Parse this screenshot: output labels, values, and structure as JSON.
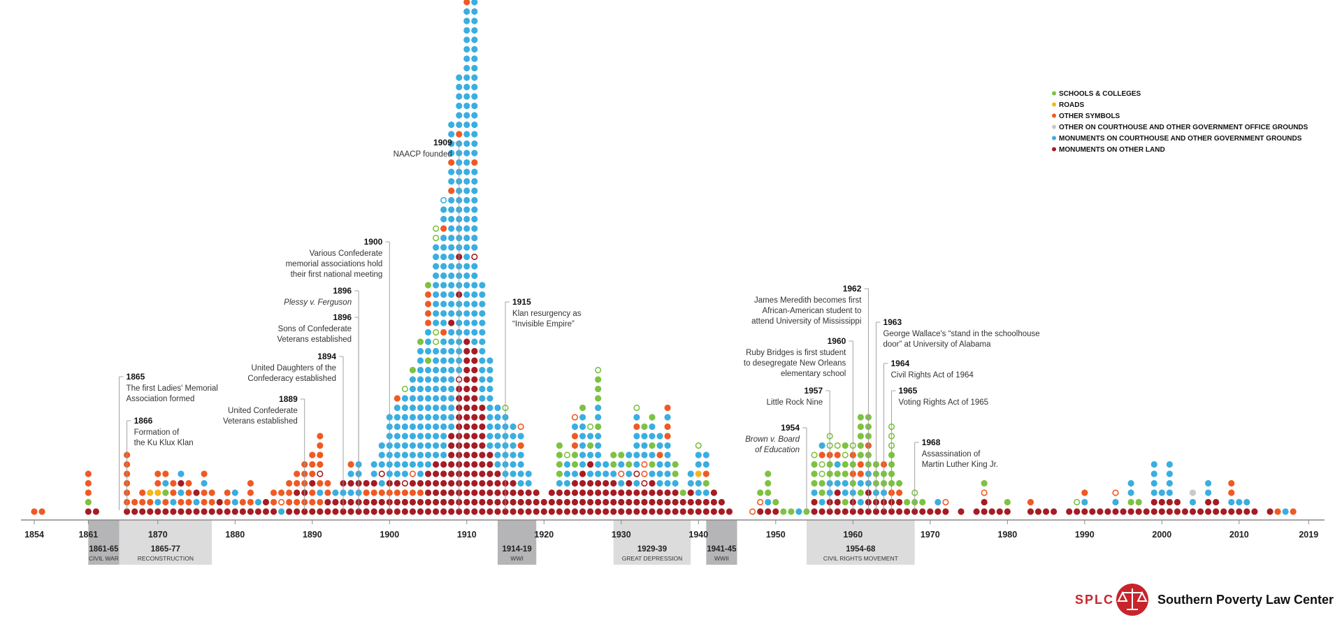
{
  "chart_data": {
    "type": "scatter",
    "subtype": "dot-stack timeline",
    "x_range": [
      1854,
      2019
    ],
    "colors": {
      "schools": "#7dc242",
      "roads": "#f3b71b",
      "other_symbols": "#ef5a24",
      "other_courthouse": "#c9c9c9",
      "courthouse": "#3aaee0",
      "other_land": "#a51c24"
    },
    "legend": [
      {
        "key": "schools",
        "label": "SCHOOLS & COLLEGES"
      },
      {
        "key": "roads",
        "label": "ROADS"
      },
      {
        "key": "other_symbols",
        "label": "OTHER SYMBOLS"
      },
      {
        "key": "other_courthouse",
        "label": "OTHER ON COURTHOUSE AND OTHER GOVERNMENT OFFICE GROUNDS"
      },
      {
        "key": "courthouse",
        "label": "MONUMENTS ON COURTHOUSE AND OTHER GOVERNMENT GROUNDS"
      },
      {
        "key": "other_land",
        "label": "MONUMENTS ON OTHER LAND"
      }
    ],
    "legend_position": "top-right",
    "ticks": [
      {
        "year": 1854,
        "label": "1854"
      },
      {
        "year": 1861,
        "label": "1861"
      },
      {
        "year": 1870,
        "label": "1870"
      },
      {
        "year": 1880,
        "label": "1880"
      },
      {
        "year": 1890,
        "label": "1890"
      },
      {
        "year": 1900,
        "label": "1900"
      },
      {
        "year": 1910,
        "label": "1910"
      },
      {
        "year": 1920,
        "label": "1920"
      },
      {
        "year": 1930,
        "label": "1930"
      },
      {
        "year": 1940,
        "label": "1940"
      },
      {
        "year": 1950,
        "label": "1950"
      },
      {
        "year": 1960,
        "label": "1960"
      },
      {
        "year": 1970,
        "label": "1970"
      },
      {
        "year": 1980,
        "label": "1980"
      },
      {
        "year": 1990,
        "label": "1990"
      },
      {
        "year": 2000,
        "label": "2000"
      },
      {
        "year": 2010,
        "label": "2010"
      },
      {
        "year": 2019,
        "label": "2019"
      }
    ],
    "periods": [
      {
        "start": 1861,
        "end": 1865,
        "range": "1861-65",
        "name": "CIVIL WAR",
        "shade": "dark"
      },
      {
        "start": 1865,
        "end": 1877,
        "range": "1865-77",
        "name": "RECONSTRUCTION",
        "shade": "light"
      },
      {
        "start": 1914,
        "end": 1919,
        "range": "1914-19",
        "name": "WWI",
        "shade": "dark"
      },
      {
        "start": 1929,
        "end": 1939,
        "range": "1929-39",
        "name": "GREAT DEPRESSION",
        "shade": "light"
      },
      {
        "start": 1941,
        "end": 1945,
        "range": "1941-45",
        "name": "WWII",
        "shade": "dark"
      },
      {
        "start": 1954,
        "end": 1968,
        "range": "1954-68",
        "name": "CIVIL RIGHTS MOVEMENT",
        "shade": "light"
      }
    ],
    "annotations": [
      {
        "year": 1865,
        "title": "1865",
        "lines": [
          "The first Ladies' Memorial",
          "Association formed"
        ],
        "side": "right",
        "level": 548
      },
      {
        "year": 1866,
        "title": "1866",
        "lines": [
          "Formation of",
          "the Ku Klux Klan"
        ],
        "side": "right",
        "level": 611
      },
      {
        "year": 1889,
        "title": "1889",
        "lines": [
          "United Confederate",
          "Veterans established"
        ],
        "side": "left",
        "level": 580
      },
      {
        "year": 1894,
        "title": "1894",
        "lines": [
          "United Daughters of the",
          "Confederacy established"
        ],
        "side": "left",
        "level": 519
      },
      {
        "year": 1896,
        "title": "1896",
        "lines": [
          "Sons of Confederate",
          "Veterans established"
        ],
        "side": "left",
        "level": 463
      },
      {
        "year": 1896,
        "title": "1896",
        "lines": [
          "Plessy v. Ferguson"
        ],
        "side": "left",
        "italic": true,
        "level": 425
      },
      {
        "year": 1900,
        "title": "1900",
        "lines": [
          "Various Confederate",
          "memorial associations hold",
          "their first national meeting"
        ],
        "side": "left",
        "level": 355
      },
      {
        "year": 1909,
        "title": "1909",
        "lines": [
          "NAACP founded"
        ],
        "side": "left",
        "level": 213
      },
      {
        "year": 1915,
        "title": "1915",
        "lines": [
          "Klan resurgency as",
          "“Invisible Empire”"
        ],
        "side": "right",
        "level": 441
      },
      {
        "year": 1954,
        "title": "1954",
        "lines": [
          "Brown v. Board",
          "of Education"
        ],
        "side": "left",
        "italic": true,
        "level": 621
      },
      {
        "year": 1957,
        "title": "1957",
        "lines": [
          "Little Rock Nine"
        ],
        "side": "left",
        "level": 568
      },
      {
        "year": 1960,
        "title": "1960",
        "lines": [
          "Ruby Bridges is first student",
          "to desegregate New Orleans",
          "elementary school"
        ],
        "side": "left",
        "level": 497
      },
      {
        "year": 1962,
        "title": "1962",
        "lines": [
          "James Meredith becomes first",
          "African-American student to",
          "attend University of Mississippi"
        ],
        "side": "left",
        "level": 422
      },
      {
        "year": 1963,
        "title": "1963",
        "lines": [
          "George Wallace's “stand in the schoolhouse",
          "door” at University of Alabama"
        ],
        "side": "right",
        "level": 470
      },
      {
        "year": 1964,
        "title": "1964",
        "lines": [
          "Civil Rights Act of 1964"
        ],
        "side": "right",
        "level": 529
      },
      {
        "year": 1965,
        "title": "1965",
        "lines": [
          "Voting Rights Act of 1965"
        ],
        "side": "right",
        "level": 568
      },
      {
        "year": 1968,
        "title": "1968",
        "lines": [
          "Assassination of",
          "Martin Luther King Jr."
        ],
        "side": "right",
        "level": 642
      }
    ],
    "columns": [
      {
        "year": 1854,
        "stack": "o"
      },
      {
        "year": 1855,
        "stack": "o"
      },
      {
        "year": 1861,
        "stack": "dgooo"
      },
      {
        "year": 1862,
        "stack": "d"
      },
      {
        "year": 1866,
        "stack": "doooooo"
      },
      {
        "year": 1867,
        "stack": "do"
      },
      {
        "year": 1868,
        "stack": "doo"
      },
      {
        "year": 1869,
        "stack": "doy"
      },
      {
        "year": 1870,
        "stack": "dcyoo"
      },
      {
        "year": 1871,
        "stack": "dogco"
      },
      {
        "year": 1872,
        "stack": "dcoo"
      },
      {
        "year": 1873,
        "stack": "docdc"
      },
      {
        "year": 1874,
        "stack": "dooo"
      },
      {
        "year": 1875,
        "stack": "dcd"
      },
      {
        "year": 1876,
        "stack": "dooco"
      },
      {
        "year": 1877,
        "stack": "doo"
      },
      {
        "year": 1878,
        "stack": "dd"
      },
      {
        "year": 1879,
        "stack": "doo"
      },
      {
        "year": 1880,
        "stack": "dcc"
      },
      {
        "year": 1881,
        "stack": "do"
      },
      {
        "year": 1882,
        "stack": "dooo"
      },
      {
        "year": 1883,
        "stack": "dc"
      },
      {
        "year": 1884,
        "stack": "dd"
      },
      {
        "year": 1885,
        "stack": "doo"
      },
      {
        "year": 1886,
        "stack": "cOo"
      },
      {
        "year": 1887,
        "stack": "dooo"
      },
      {
        "year": 1888,
        "stack": "dodoo"
      },
      {
        "year": 1889,
        "stack": "dodooo"
      },
      {
        "year": 1890,
        "stack": "doodooo"
      },
      {
        "year": 1891,
        "stack": "docoDoooo"
      },
      {
        "year": 1892,
        "stack": "ddoo"
      },
      {
        "year": 1893,
        "stack": "ddc"
      },
      {
        "year": 1894,
        "stack": "ddcd"
      },
      {
        "year": 1895,
        "stack": "ddcdco"
      },
      {
        "year": 1896,
        "stack": "ddcdcc"
      },
      {
        "year": 1897,
        "stack": "ddod"
      },
      {
        "year": 1898,
        "stack": "ddodcc"
      },
      {
        "year": 1899,
        "stack": "ddocDccc"
      },
      {
        "year": 1900,
        "stack": "ddodccccccc"
      },
      {
        "year": 1901,
        "stack": "ddodcccccccco"
      },
      {
        "year": 1902,
        "stack": "ddoDcccccccccG"
      },
      {
        "year": 1903,
        "stack": "ddodOccccccccccg"
      },
      {
        "year": 1904,
        "stack": "ddodccccccccccccccg"
      },
      {
        "year": 1905,
        "stack": "dddddcccccccccccgcccoooog"
      },
      {
        "year": 1906,
        "stack": "ddddddccccccccccccGGcccccccccGG"
      },
      {
        "year": 1907,
        "stack": "ddddddcccccccccccccoccccccccccoccC"
      },
      {
        "year": 1908,
        "stack": "dddddddddcccccccccccdcccccccccccccoccocccc"
      },
      {
        "year": 1909,
        "stack": "ddddddddddddddDccccccccdcccdccccccccccccocccccc"
      },
      {
        "year": 1910,
        "stack": "dddddddddddddddddddcccccccccccccccccccccccccccccccccccoocccooggCcgggG"
      },
      {
        "year": 1911,
        "stack": "ddddddddddddddddddcccccccccDcccccccccoccccccccccccccccccoooccc"
      },
      {
        "year": 1912,
        "stack": "ddddddddddddccccccccccccc"
      },
      {
        "year": 1913,
        "stack": "dddddddcccccccccc"
      },
      {
        "year": 1914,
        "stack": "dddddccccccc"
      },
      {
        "year": 1915,
        "stack": "ddddcccccccG"
      },
      {
        "year": 1916,
        "stack": "ddddcccccc"
      },
      {
        "year": 1917,
        "stack": "dddccccocO"
      },
      {
        "year": 1918,
        "stack": "dddcc"
      },
      {
        "year": 1919,
        "stack": "ddd"
      },
      {
        "year": 1920,
        "stack": "dd"
      },
      {
        "year": 1921,
        "stack": "ddd"
      },
      {
        "year": 1922,
        "stack": "dddcgggg"
      },
      {
        "year": 1923,
        "stack": "dddcccG"
      },
      {
        "year": 1924,
        "stack": "ddddcggoocO"
      },
      {
        "year": 1925,
        "stack": "dddddccccccg"
      },
      {
        "year": 1926,
        "stack": "ddddcdcgcG"
      },
      {
        "year": 1927,
        "stack": "ddddcccccgccgggG"
      },
      {
        "year": 1928,
        "stack": "ddddcc"
      },
      {
        "year": 1929,
        "stack": "ddddcgg"
      },
      {
        "year": 1930,
        "stack": "dddcOcg"
      },
      {
        "year": 1931,
        "stack": "ddddcgc"
      },
      {
        "year": 1932,
        "stack": "dddcDccccocG"
      },
      {
        "year": 1933,
        "stack": "dddDOOcccg"
      },
      {
        "year": 1934,
        "stack": "ddddcgcgccg"
      },
      {
        "year": 1935,
        "stack": "dddcccocc"
      },
      {
        "year": 1936,
        "stack": "dddcccccooco"
      },
      {
        "year": 1937,
        "stack": "dddcgg"
      },
      {
        "year": 1938,
        "stack": "ddg"
      },
      {
        "year": 1939,
        "stack": "dddcc"
      },
      {
        "year": 1940,
        "stack": "ddccyccG"
      },
      {
        "year": 1941,
        "stack": "ddcgocc"
      },
      {
        "year": 1942,
        "stack": "ddd"
      },
      {
        "year": 1943,
        "stack": "dd"
      },
      {
        "year": 1944,
        "stack": "d"
      },
      {
        "year": 1947,
        "stack": "O"
      },
      {
        "year": 1948,
        "stack": "dOg"
      },
      {
        "year": 1949,
        "stack": "dcggg"
      },
      {
        "year": 1950,
        "stack": "dg"
      },
      {
        "year": 1951,
        "stack": "g"
      },
      {
        "year": 1952,
        "stack": "g"
      },
      {
        "year": 1953,
        "stack": "c"
      },
      {
        "year": 1954,
        "stack": "g"
      },
      {
        "year": 1955,
        "stack": "ddcgggG"
      },
      {
        "year": 1956,
        "stack": "dcggGGoc"
      },
      {
        "year": 1957,
        "stack": "ddccggoGG"
      },
      {
        "year": 1958,
        "stack": "dddcgcoG"
      },
      {
        "year": 1959,
        "stack": "dgccggGg"
      },
      {
        "year": 1960,
        "stack": "ddcgogoG"
      },
      {
        "year": 1961,
        "stack": "dcgcooggggg"
      },
      {
        "year": 1962,
        "stack": "dddccggoggg"
      },
      {
        "year": 1963,
        "stack": "ddcggg"
      },
      {
        "year": 1964,
        "stack": "ddcggo"
      },
      {
        "year": 1965,
        "stack": "ddoggggGGG"
      },
      {
        "year": 1966,
        "stack": "ddog"
      },
      {
        "year": 1967,
        "stack": "dg"
      },
      {
        "year": 1968,
        "stack": "dgG"
      },
      {
        "year": 1969,
        "stack": "dg"
      },
      {
        "year": 1970,
        "stack": "d"
      },
      {
        "year": 1971,
        "stack": "dc"
      },
      {
        "year": 1972,
        "stack": "dO"
      },
      {
        "year": 1974,
        "stack": "d"
      },
      {
        "year": 1976,
        "stack": "d"
      },
      {
        "year": 1977,
        "stack": "ddOg"
      },
      {
        "year": 1978,
        "stack": "d"
      },
      {
        "year": 1979,
        "stack": "d"
      },
      {
        "year": 1980,
        "stack": "dg"
      },
      {
        "year": 1983,
        "stack": "do"
      },
      {
        "year": 1984,
        "stack": "d"
      },
      {
        "year": 1985,
        "stack": "d"
      },
      {
        "year": 1986,
        "stack": "d"
      },
      {
        "year": 1988,
        "stack": "d"
      },
      {
        "year": 1989,
        "stack": "dG"
      },
      {
        "year": 1990,
        "stack": "dco"
      },
      {
        "year": 1991,
        "stack": "d"
      },
      {
        "year": 1992,
        "stack": "d"
      },
      {
        "year": 1993,
        "stack": "d"
      },
      {
        "year": 1994,
        "stack": "dcO"
      },
      {
        "year": 1995,
        "stack": "d"
      },
      {
        "year": 1996,
        "stack": "dgcc"
      },
      {
        "year": 1997,
        "stack": "dg"
      },
      {
        "year": 1998,
        "stack": "d"
      },
      {
        "year": 1999,
        "stack": "ddcccc"
      },
      {
        "year": 2000,
        "stack": "ddc"
      },
      {
        "year": 2001,
        "stack": "ddcccc"
      },
      {
        "year": 2002,
        "stack": "dd"
      },
      {
        "year": 2003,
        "stack": "d"
      },
      {
        "year": 2004,
        "stack": "dcs"
      },
      {
        "year": 2005,
        "stack": "d"
      },
      {
        "year": 2006,
        "stack": "ddcc"
      },
      {
        "year": 2007,
        "stack": "dd"
      },
      {
        "year": 2008,
        "stack": "d"
      },
      {
        "year": 2009,
        "stack": "dcoo"
      },
      {
        "year": 2010,
        "stack": "dc"
      },
      {
        "year": 2011,
        "stack": "dc"
      },
      {
        "year": 2012,
        "stack": "d"
      },
      {
        "year": 2014,
        "stack": "d"
      },
      {
        "year": 2015,
        "stack": "o"
      },
      {
        "year": 2016,
        "stack": "c"
      },
      {
        "year": 2017,
        "stack": "o"
      }
    ]
  },
  "branding": {
    "abbr": "SPLC",
    "name": "Southern Poverty Law Center"
  }
}
